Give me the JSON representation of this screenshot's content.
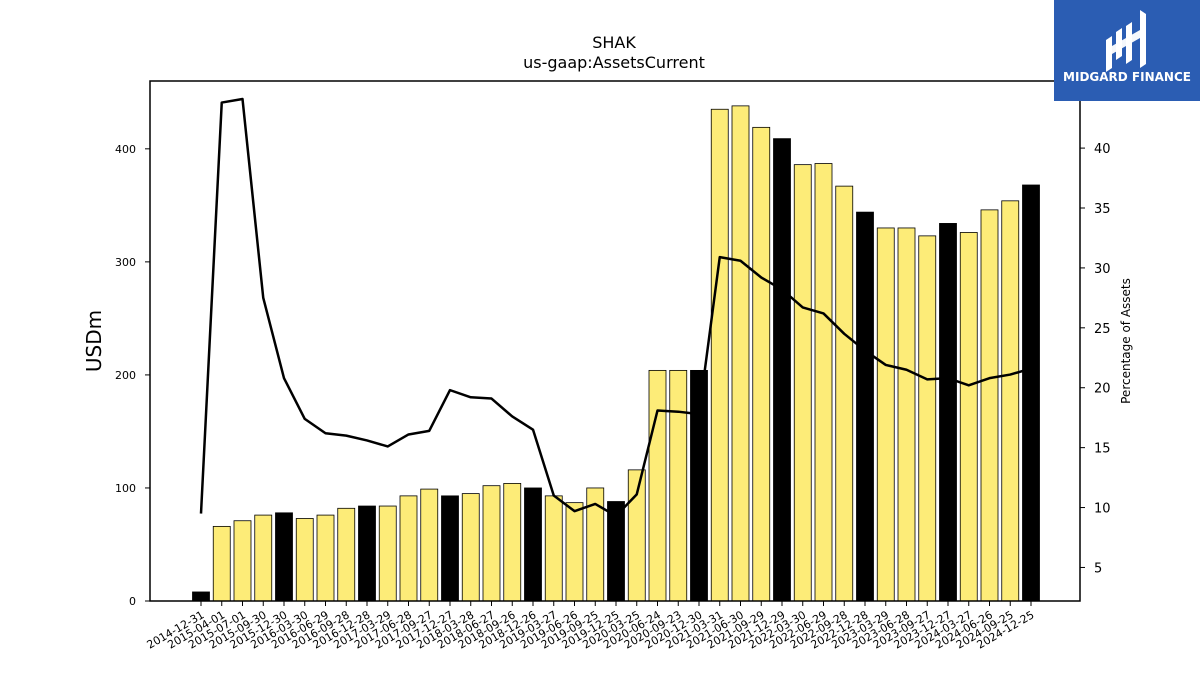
{
  "chart_data": {
    "type": "bar",
    "title": "SHAK",
    "subtitle": "us-gaap:AssetsCurrent",
    "ylabel": "USDm",
    "y2label": "Percentage of Assets",
    "ylim": [
      0,
      460
    ],
    "y2lim": [
      2.2,
      45.6
    ],
    "yticks": [
      0,
      100,
      200,
      300,
      400
    ],
    "y2ticks": [
      5,
      10,
      15,
      20,
      25,
      30,
      35,
      40
    ],
    "categories": [
      "2014-12-31",
      "2015-04-01",
      "2015-07-01",
      "2015-09-30",
      "2015-12-30",
      "2016-03-30",
      "2016-06-29",
      "2016-09-28",
      "2016-12-28",
      "2017-03-29",
      "2017-06-28",
      "2017-09-27",
      "2017-12-27",
      "2018-03-28",
      "2018-06-27",
      "2018-09-26",
      "2018-12-26",
      "2019-03-27",
      "2019-06-26",
      "2019-09-25",
      "2019-12-25",
      "2020-03-25",
      "2020-06-24",
      "2020-09-23",
      "2020-12-30",
      "2021-03-31",
      "2021-06-30",
      "2021-09-29",
      "2021-12-29",
      "2022-03-30",
      "2022-06-29",
      "2022-09-28",
      "2022-12-28",
      "2023-03-29",
      "2023-06-28",
      "2023-09-27",
      "2023-12-27",
      "2024-03-27",
      "2024-06-26",
      "2024-09-25",
      "2024-12-25"
    ],
    "series": [
      {
        "type": "bar",
        "values": [
          8,
          66,
          71,
          76,
          78,
          73,
          76,
          82,
          84,
          84,
          93,
          99,
          93,
          95,
          102,
          104,
          100,
          93,
          87,
          100,
          88,
          116,
          204,
          204,
          204,
          435,
          438,
          419,
          409,
          386,
          387,
          367,
          344,
          330,
          330,
          323,
          334,
          326,
          346,
          354,
          368
        ],
        "highlight": [
          true,
          false,
          false,
          false,
          true,
          false,
          false,
          false,
          true,
          false,
          false,
          false,
          true,
          false,
          false,
          false,
          true,
          false,
          false,
          false,
          true,
          false,
          false,
          false,
          true,
          false,
          false,
          false,
          true,
          false,
          false,
          false,
          true,
          false,
          false,
          false,
          true,
          false,
          false,
          false,
          true
        ]
      },
      {
        "type": "line",
        "axis": "right",
        "values": [
          9.5,
          43.8,
          44.1,
          27.5,
          20.8,
          17.4,
          16.2,
          16.0,
          15.6,
          15.1,
          16.1,
          16.4,
          19.8,
          19.2,
          19.1,
          17.6,
          16.5,
          11.0,
          9.7,
          10.3,
          9.3,
          11.1,
          18.1,
          18.0,
          17.8,
          30.9,
          30.6,
          29.2,
          28.2,
          26.7,
          26.2,
          24.5,
          23.1,
          21.9,
          21.5,
          20.7,
          20.8,
          20.2,
          20.8,
          21.1,
          21.6
        ]
      }
    ],
    "colors": {
      "bar_fill": "#fdec78",
      "bar_highlight": "#000000",
      "bar_edge": "#000000",
      "line": "#000000"
    },
    "grid": false,
    "legend": "none"
  },
  "logo": {
    "text": "MIDGARD FINANCE",
    "bg_color": "#2b5db3",
    "icon": "midgard-logo-icon"
  }
}
